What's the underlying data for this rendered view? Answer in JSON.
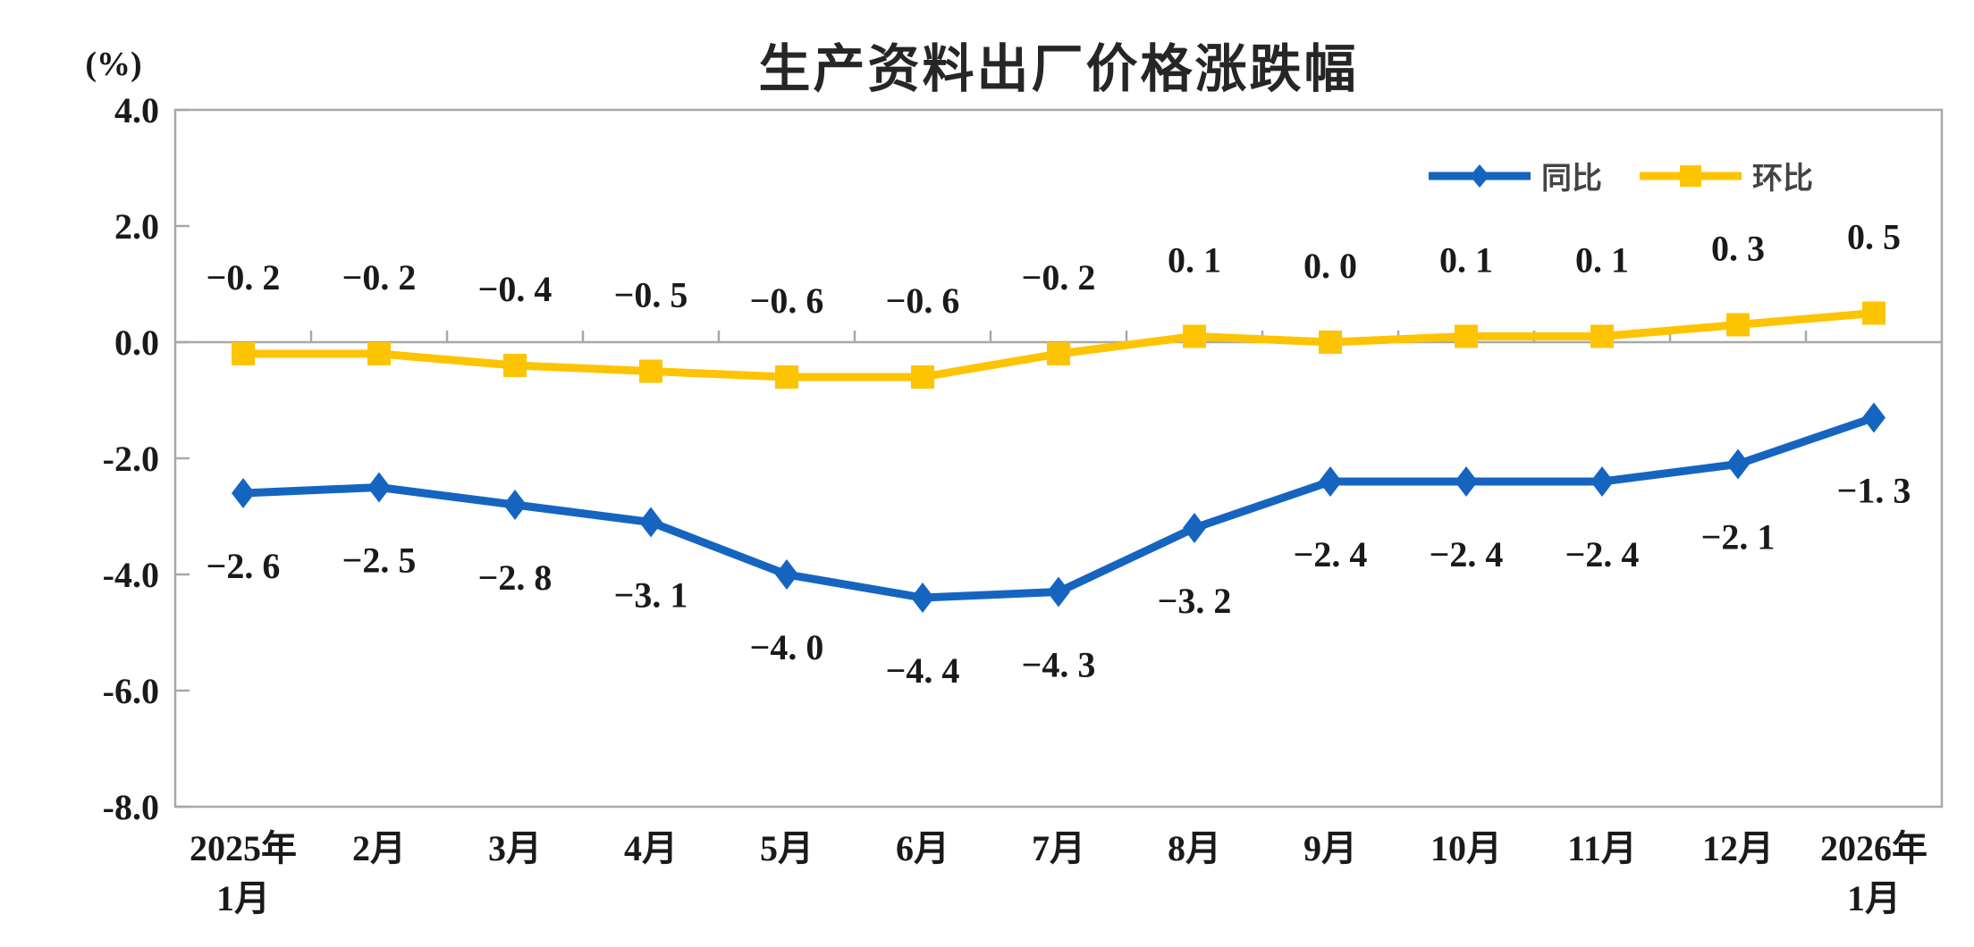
{
  "title": "生产资料出厂价格涨跌幅",
  "y_unit": "(%)",
  "chart_data": {
    "type": "line",
    "title": "生产资料出厂价格涨跌幅",
    "y_unit": "(%)",
    "categories": [
      [
        "2025年",
        "1月"
      ],
      [
        "2月"
      ],
      [
        "3月"
      ],
      [
        "4月"
      ],
      [
        "5月"
      ],
      [
        "6月"
      ],
      [
        "7月"
      ],
      [
        "8月"
      ],
      [
        "9月"
      ],
      [
        "10月"
      ],
      [
        "11月"
      ],
      [
        "12月"
      ],
      [
        "2026年",
        "1月"
      ]
    ],
    "series": [
      {
        "name": "同比",
        "color": "#1565C0",
        "marker": "diamond",
        "label_position": "below",
        "values": [
          -2.6,
          -2.5,
          -2.8,
          -3.1,
          -4.0,
          -4.4,
          -4.3,
          -3.2,
          -2.4,
          -2.4,
          -2.4,
          -2.1,
          -1.3
        ],
        "labels": [
          "−2. 6",
          "−2. 5",
          "−2. 8",
          "−3. 1",
          "−4. 0",
          "−4. 4",
          "−4. 3",
          "−3. 2",
          "−2. 4",
          "−2. 4",
          "−2. 4",
          "−2. 1",
          "−1. 3"
        ]
      },
      {
        "name": "环比",
        "color": "#FDC404",
        "marker": "square",
        "label_position": "above",
        "values": [
          -0.2,
          -0.2,
          -0.4,
          -0.5,
          -0.6,
          -0.6,
          -0.2,
          0.1,
          0.0,
          0.1,
          0.1,
          0.3,
          0.5
        ],
        "labels": [
          "−0. 2",
          "−0. 2",
          "−0. 4",
          "−0. 5",
          "−0. 6",
          "−0. 6",
          "−0. 2",
          "0. 1",
          "0. 0",
          "0. 1",
          "0. 1",
          "0. 3",
          "0. 5"
        ]
      }
    ],
    "ylim": [
      -8.0,
      4.0
    ],
    "ytick_step": 2.0,
    "ytick_labels": [
      "4.0",
      "2.0",
      "0.0",
      "-2.0",
      "-4.0",
      "-6.0",
      "-8.0"
    ],
    "grid": "zero-baseline-only",
    "legend_position": "top-right",
    "axis_color": "#A8A8A8",
    "label_color": "#1A1A1A"
  }
}
